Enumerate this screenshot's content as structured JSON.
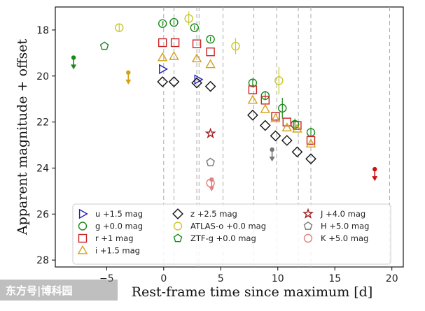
{
  "chart_data": {
    "type": "scatter",
    "xlabel": "Rest-frame time since maximum [d]",
    "ylabel": "Apparent magnitude + offset",
    "xlim": [
      -9.5,
      21
    ],
    "ylim": [
      28.3,
      17.0
    ],
    "y_inverted": true,
    "x_ticks": [
      -5,
      0,
      5,
      10,
      15,
      20
    ],
    "y_ticks": [
      18,
      20,
      22,
      24,
      26,
      28
    ],
    "grid": false,
    "legend_position": "bottom-center",
    "vlines": [
      0,
      0.9,
      2.9,
      3.1,
      5.2,
      7.9,
      9.9,
      11.8,
      12.9,
      19.8
    ],
    "series": [
      {
        "name": "u +1.5 mag",
        "marker": "triangle-right",
        "color": "#1f1fb4",
        "filled": false,
        "points": [
          [
            -0.1,
            19.7
          ],
          [
            3.0,
            20.15
          ]
        ]
      },
      {
        "name": "g +0.0 mag",
        "marker": "circle",
        "color": "#1b8a1b",
        "filled": false,
        "points": [
          [
            -0.1,
            17.72
          ],
          [
            0.9,
            17.67
          ],
          [
            2.7,
            17.9
          ],
          [
            4.1,
            18.4
          ],
          [
            7.8,
            20.3
          ],
          [
            8.9,
            20.85
          ],
          [
            10.4,
            21.4
          ],
          [
            11.5,
            22.1
          ],
          [
            12.9,
            22.45
          ]
        ],
        "errors": [
          0.1,
          0.1,
          0.1,
          0.1,
          0.15,
          0.2,
          0.45,
          0.25,
          0.2
        ]
      },
      {
        "name": "r +1 mag",
        "marker": "square",
        "color": "#cc2222",
        "filled": false,
        "points": [
          [
            -0.1,
            18.55
          ],
          [
            1.0,
            18.55
          ],
          [
            2.9,
            18.6
          ],
          [
            4.1,
            18.95
          ],
          [
            7.8,
            20.6
          ],
          [
            8.9,
            21.05
          ],
          [
            9.8,
            21.75
          ],
          [
            10.8,
            22.0
          ],
          [
            11.7,
            22.15
          ],
          [
            12.9,
            22.8
          ]
        ]
      },
      {
        "name": "i +1.5 mag",
        "marker": "triangle-up",
        "color": "#d4a017",
        "filled": false,
        "points": [
          [
            -0.1,
            19.2
          ],
          [
            0.9,
            19.15
          ],
          [
            2.9,
            19.25
          ],
          [
            4.1,
            19.5
          ],
          [
            7.8,
            21.05
          ],
          [
            8.9,
            21.45
          ],
          [
            9.8,
            21.85
          ],
          [
            10.8,
            22.25
          ],
          [
            11.7,
            22.3
          ],
          [
            12.9,
            22.95
          ]
        ]
      },
      {
        "name": "z +2.5 mag",
        "marker": "diamond",
        "color": "#111111",
        "filled": false,
        "points": [
          [
            -0.1,
            20.25
          ],
          [
            0.9,
            20.25
          ],
          [
            2.9,
            20.3
          ],
          [
            4.1,
            20.45
          ],
          [
            7.8,
            21.7
          ],
          [
            8.9,
            22.15
          ],
          [
            9.8,
            22.6
          ],
          [
            10.8,
            22.8
          ],
          [
            11.7,
            23.3
          ],
          [
            12.9,
            23.6
          ]
        ]
      },
      {
        "name": "ATLAS-o +0.0 mag",
        "marker": "circle",
        "color": "#c8c828",
        "filled": false,
        "points": [
          [
            -3.9,
            17.9
          ],
          [
            2.2,
            17.5
          ],
          [
            6.3,
            18.7
          ],
          [
            10.1,
            20.2
          ]
        ],
        "errors": [
          0.15,
          0.3,
          0.35,
          0.6
        ]
      },
      {
        "name": "ZTF-g +0.0 mag",
        "marker": "pentagon",
        "color": "#1b8a1b",
        "filled": false,
        "points": [
          [
            -5.2,
            18.7
          ]
        ]
      },
      {
        "name": "J +4.0 mag",
        "marker": "star",
        "color": "#a02020",
        "filled": false,
        "points": [
          [
            4.1,
            22.5
          ]
        ]
      },
      {
        "name": "H +5.0 mag",
        "marker": "pentagon",
        "color": "#777777",
        "filled": false,
        "points": [
          [
            4.1,
            23.75
          ]
        ]
      },
      {
        "name": "K +5.0 mag",
        "marker": "circle",
        "color": "#e08080",
        "filled": false,
        "points": [
          [
            4.1,
            24.65
          ]
        ]
      }
    ],
    "upper_limits": [
      {
        "x": -7.9,
        "y": 19.2,
        "color": "#1b8a1b"
      },
      {
        "x": -3.1,
        "y": 19.85,
        "color": "#d4a017"
      },
      {
        "x": 9.5,
        "y": 23.2,
        "color": "#777777"
      },
      {
        "x": 4.2,
        "y": 24.5,
        "color": "#e08080"
      },
      {
        "x": 18.5,
        "y": 24.05,
        "color": "#cc1111"
      }
    ],
    "legend": [
      {
        "label": "u +1.5 mag",
        "marker": "triangle-right",
        "color": "#1f1fb4",
        "col": 0
      },
      {
        "label": "g +0.0 mag",
        "marker": "circle",
        "color": "#1b8a1b",
        "col": 0
      },
      {
        "label": "r +1 mag",
        "marker": "square",
        "color": "#cc2222",
        "col": 0
      },
      {
        "label": "i +1.5 mag",
        "marker": "triangle-up",
        "color": "#d4a017",
        "col": 0
      },
      {
        "label": "z +2.5 mag",
        "marker": "diamond",
        "color": "#111111",
        "col": 1
      },
      {
        "label": "ATLAS-o +0.0 mag",
        "marker": "circle",
        "color": "#c8c828",
        "col": 1
      },
      {
        "label": "ZTF-g +0.0 mag",
        "marker": "pentagon",
        "color": "#1b8a1b",
        "col": 1
      },
      {
        "label": "J +4.0 mag",
        "marker": "star",
        "color": "#a02020",
        "col": 2
      },
      {
        "label": "H +5.0 mag",
        "marker": "pentagon",
        "color": "#777777",
        "col": 2
      },
      {
        "label": "K +5.0 mag",
        "marker": "circle",
        "color": "#e08080",
        "col": 2
      }
    ]
  },
  "watermark": {
    "text": "东方号|博科园"
  }
}
